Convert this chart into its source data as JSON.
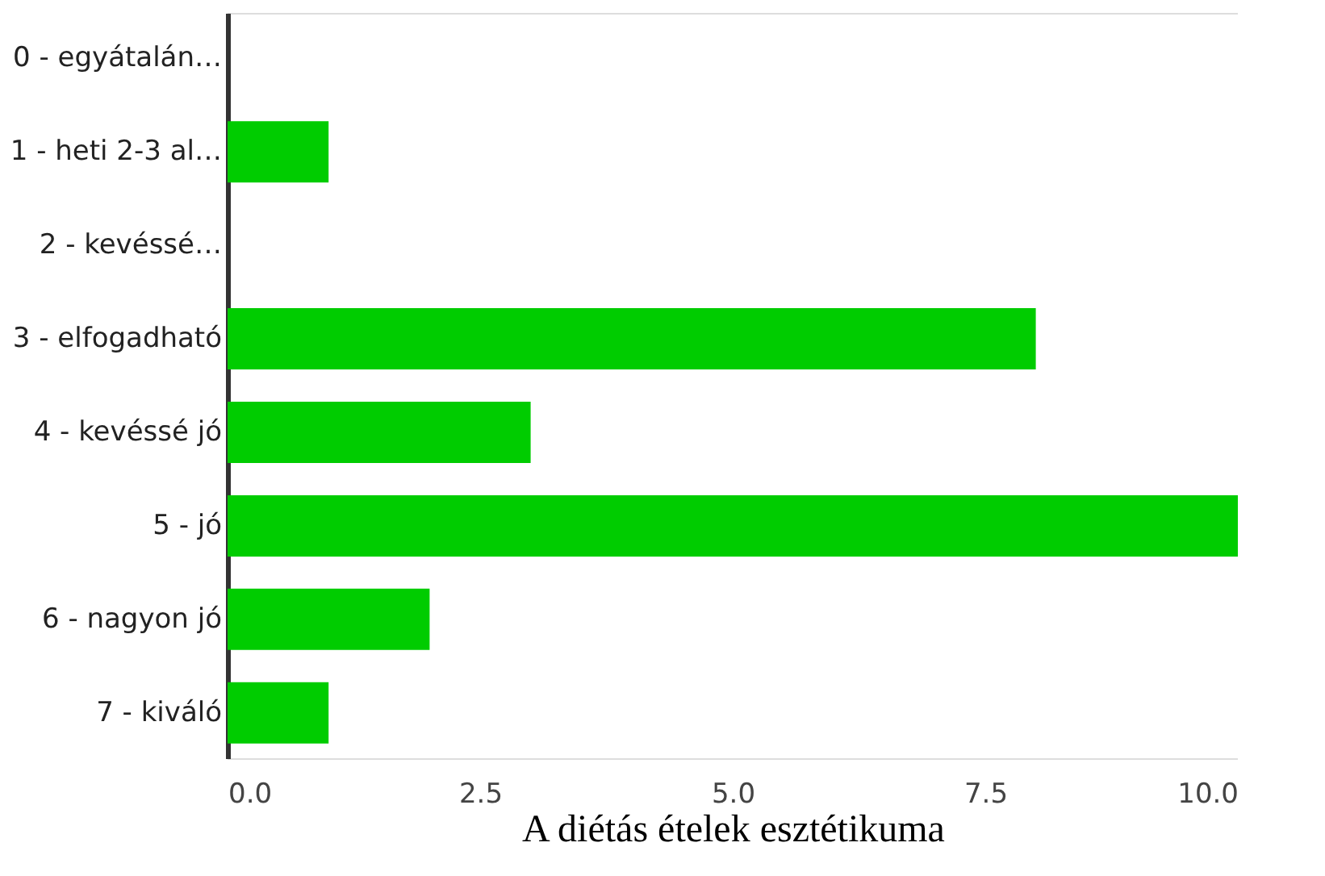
{
  "chart_data": {
    "type": "bar",
    "orientation": "horizontal",
    "xlabel": "A diétás ételek esztétikuma",
    "categories": [
      "0 - egyátalán…",
      "1 - heti 2-3 al…",
      "2 - kevéssé…",
      "3 - elfogadható",
      "4 - kevéssé jó",
      "5 - jó",
      "6 - nagyon jó",
      "7 - kiváló"
    ],
    "values": [
      0,
      1,
      0,
      8,
      3,
      10,
      2,
      1
    ],
    "color": "#00cc00",
    "xlim": [
      0,
      10
    ],
    "xticks": [
      {
        "value": 0,
        "label": "0.0"
      },
      {
        "value": 2.5,
        "label": "2.5"
      },
      {
        "value": 5,
        "label": "5.0"
      },
      {
        "value": 7.5,
        "label": "7.5"
      },
      {
        "value": 10,
        "label": "10.0"
      }
    ],
    "grid": false
  }
}
